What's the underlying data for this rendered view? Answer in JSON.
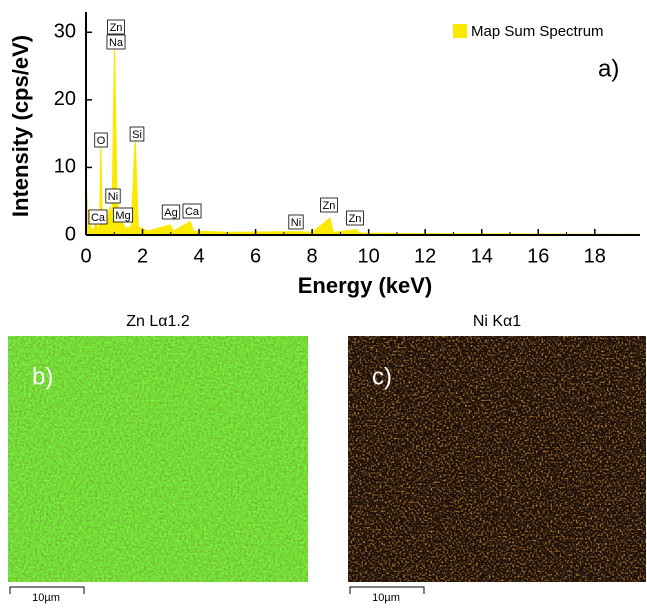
{
  "chart_data": {
    "type": "area",
    "xlabel": "Energy (keV)",
    "ylabel": "Intensity (cps/eV)",
    "annotation": "a)",
    "x": [
      0,
      0.02,
      0.1,
      0.2,
      0.3,
      0.34,
      0.4,
      0.48,
      0.52,
      0.58,
      0.7,
      0.85,
      0.92,
      1.01,
      1.1,
      1.25,
      1.4,
      1.6,
      1.74,
      1.85,
      2.2,
      2.98,
      3.1,
      3.69,
      3.8,
      5,
      7.47,
      8,
      8.63,
      8.75,
      9.57,
      9.7,
      12,
      19.5
    ],
    "series": [
      {
        "name": "Map Sum Spectrum",
        "color": "#fbea00",
        "values": [
          0,
          6.5,
          2,
          0.8,
          1,
          3,
          1,
          1.5,
          13.5,
          2,
          1.5,
          4.2,
          3,
          28.5,
          5,
          2.2,
          1,
          1.2,
          14.5,
          1.2,
          0.6,
          1.5,
          0.6,
          2,
          0.6,
          0.4,
          0.5,
          0.4,
          2.5,
          0.4,
          0.8,
          0.3,
          0.2,
          0.1
        ]
      }
    ],
    "xlim": [
      0,
      19.6
    ],
    "ylim": [
      0,
      33
    ],
    "xticks": [
      0,
      2,
      4,
      6,
      8,
      10,
      12,
      14,
      16,
      18
    ],
    "yticks": [
      0,
      10,
      20,
      30
    ],
    "peak_labels": [
      "Zn",
      "Na",
      "O",
      "Si",
      "Ni",
      "Ca",
      "Mg",
      "Ag",
      "Ca",
      "Ni",
      "Zn",
      "Zn"
    ]
  },
  "panels": [
    {
      "title": "Zn Lα1.2",
      "label": "b)",
      "scale_bar": "10µm"
    },
    {
      "title": "Ni Kα1",
      "label": "c)",
      "scale_bar": "10µm"
    }
  ]
}
